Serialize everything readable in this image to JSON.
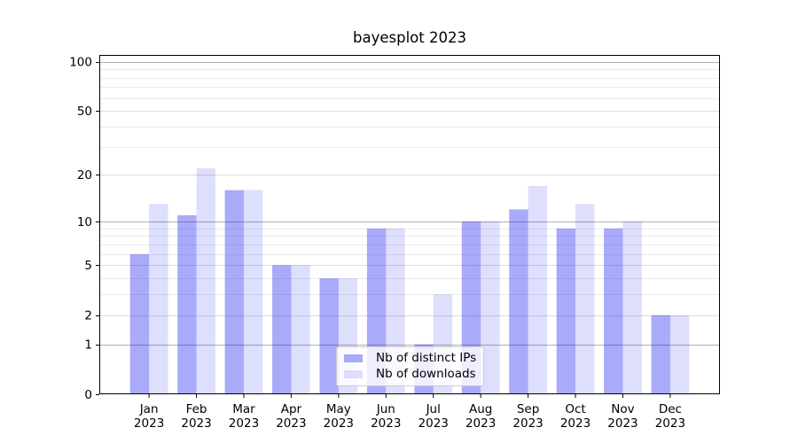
{
  "chart_data": {
    "type": "bar",
    "title": "bayesplot 2023",
    "categories": [
      "Jan",
      "Feb",
      "Mar",
      "Apr",
      "May",
      "Jun",
      "Jul",
      "Aug",
      "Sep",
      "Oct",
      "Nov",
      "Dec"
    ],
    "year_label": "2023",
    "series": [
      {
        "name": "Nb of distinct IPs",
        "color": "#0505f0",
        "alpha": 0.34,
        "values": [
          6,
          11,
          16,
          5,
          4,
          9,
          1,
          10,
          12,
          9,
          9,
          2
        ]
      },
      {
        "name": "Nb of downloads",
        "color": "#0505f0",
        "alpha": 0.135,
        "values": [
          13,
          22,
          16,
          5,
          4,
          9,
          3,
          10,
          17,
          13,
          10,
          2
        ]
      }
    ],
    "yscale": "log1p",
    "ylim": [
      0,
      110
    ],
    "ytick_values": [
      0,
      1,
      2,
      5,
      10,
      20,
      50,
      100
    ],
    "ytick_labels": [
      "0",
      "1",
      "2",
      "5",
      "10",
      "20",
      "50",
      "100"
    ],
    "grid": {
      "major_values": [
        1,
        10,
        100
      ],
      "major_color": "#b0b0b0",
      "sub_values": [
        2,
        5,
        20,
        50
      ],
      "sub_color": "#dcdcdc",
      "minor_values": [
        3,
        4,
        6,
        7,
        8,
        9,
        30,
        40,
        60,
        70,
        80,
        90
      ],
      "minor_color": "#ebebeb"
    },
    "legend_position": "lower center",
    "axis_color": "#000000",
    "background_color": "#ffffff"
  }
}
